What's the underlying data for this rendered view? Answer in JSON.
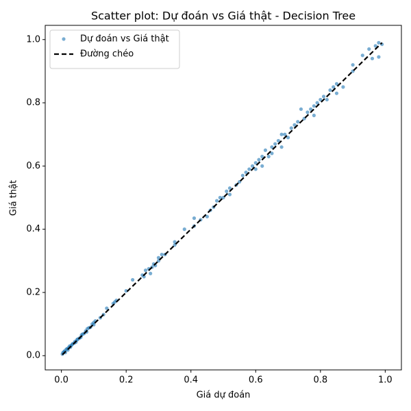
{
  "chart_data": {
    "type": "scatter",
    "title": "Scatter plot: Dự đoán vs Giá thật - Decision Tree",
    "xlabel": "Giá dự đoán",
    "ylabel": "Giá thật",
    "xlim": [
      -0.05,
      1.05
    ],
    "ylim": [
      -0.045,
      1.045
    ],
    "xticks": [
      {
        "value": 0,
        "label": "0.0"
      },
      {
        "value": 0.2,
        "label": "0.2"
      },
      {
        "value": 0.4,
        "label": "0.4"
      },
      {
        "value": 0.6,
        "label": "0.6"
      },
      {
        "value": 0.8,
        "label": "0.8"
      },
      {
        "value": 1,
        "label": "1.0"
      }
    ],
    "yticks": [
      {
        "value": 0,
        "label": "0.0"
      },
      {
        "value": 0.2,
        "label": "0.2"
      },
      {
        "value": 0.4,
        "label": "0.4"
      },
      {
        "value": 0.6,
        "label": "0.6"
      },
      {
        "value": 0.8,
        "label": "0.8"
      },
      {
        "value": 1,
        "label": "1.0"
      }
    ],
    "grid": false,
    "legend": "upper left",
    "series": [
      {
        "name": "Dự đoán vs Giá thật",
        "color": "#1f77b4",
        "marker": "point",
        "x": [
          0.003,
          0.005,
          0.008,
          0.01,
          0.012,
          0.015,
          0.018,
          0.02,
          0.022,
          0.025,
          0.028,
          0.03,
          0.033,
          0.035,
          0.04,
          0.042,
          0.045,
          0.048,
          0.05,
          0.055,
          0.06,
          0.062,
          0.065,
          0.07,
          0.075,
          0.078,
          0.08,
          0.085,
          0.09,
          0.095,
          0.1,
          0.1,
          0.105,
          0.12,
          0.13,
          0.14,
          0.16,
          0.165,
          0.17,
          0.2,
          0.22,
          0.25,
          0.255,
          0.26,
          0.27,
          0.275,
          0.28,
          0.285,
          0.29,
          0.3,
          0.3,
          0.31,
          0.32,
          0.35,
          0.35,
          0.38,
          0.41,
          0.41,
          0.43,
          0.45,
          0.46,
          0.47,
          0.48,
          0.49,
          0.5,
          0.51,
          0.52,
          0.52,
          0.54,
          0.55,
          0.56,
          0.57,
          0.58,
          0.59,
          0.6,
          0.6,
          0.61,
          0.62,
          0.62,
          0.63,
          0.64,
          0.65,
          0.65,
          0.66,
          0.67,
          0.68,
          0.68,
          0.69,
          0.7,
          0.71,
          0.72,
          0.73,
          0.74,
          0.75,
          0.76,
          0.77,
          0.78,
          0.78,
          0.79,
          0.8,
          0.81,
          0.82,
          0.83,
          0.84,
          0.85,
          0.85,
          0.87,
          0.9,
          0.9,
          0.93,
          0.95,
          0.96,
          0.97,
          0.98,
          0.98,
          0.99
        ],
        "values": [
          0.005,
          0.01,
          0.012,
          0.015,
          0.01,
          0.02,
          0.022,
          0.018,
          0.025,
          0.03,
          0.027,
          0.032,
          0.035,
          0.038,
          0.04,
          0.045,
          0.043,
          0.05,
          0.052,
          0.055,
          0.058,
          0.065,
          0.068,
          0.07,
          0.078,
          0.075,
          0.085,
          0.088,
          0.09,
          0.1,
          0.098,
          0.105,
          0.11,
          0.12,
          0.13,
          0.15,
          0.165,
          0.17,
          0.175,
          0.205,
          0.24,
          0.255,
          0.25,
          0.27,
          0.275,
          0.26,
          0.28,
          0.29,
          0.285,
          0.3,
          0.31,
          0.32,
          0.32,
          0.35,
          0.36,
          0.4,
          0.41,
          0.435,
          0.43,
          0.44,
          0.46,
          0.47,
          0.49,
          0.5,
          0.5,
          0.52,
          0.51,
          0.53,
          0.54,
          0.55,
          0.57,
          0.58,
          0.59,
          0.6,
          0.61,
          0.59,
          0.62,
          0.6,
          0.63,
          0.65,
          0.63,
          0.66,
          0.64,
          0.67,
          0.68,
          0.66,
          0.7,
          0.7,
          0.69,
          0.72,
          0.73,
          0.74,
          0.78,
          0.75,
          0.77,
          0.78,
          0.79,
          0.76,
          0.8,
          0.81,
          0.82,
          0.81,
          0.84,
          0.85,
          0.86,
          0.83,
          0.85,
          0.9,
          0.92,
          0.95,
          0.97,
          0.94,
          0.98,
          0.99,
          0.945,
          0.985
        ]
      },
      {
        "name": "Đường chéo",
        "color": "#000000",
        "marker": "dashed-line",
        "x": [
          0.003,
          0.99
        ],
        "values": [
          0.003,
          0.99
        ]
      }
    ]
  }
}
